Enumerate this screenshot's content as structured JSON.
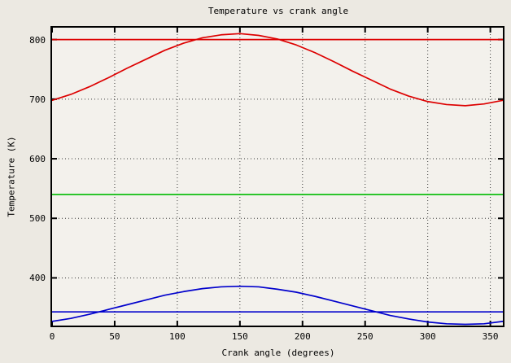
{
  "chart_data": {
    "type": "line",
    "title": "Temperature vs crank angle",
    "xlabel": "Crank angle (degrees)",
    "ylabel": "Temperature (K)",
    "xlim": [
      0,
      360
    ],
    "ylim": [
      320,
      820
    ],
    "xticks": [
      0,
      50,
      100,
      150,
      200,
      250,
      300,
      350
    ],
    "yticks": [
      400,
      500,
      600,
      700,
      800
    ],
    "grid": "dotted",
    "legend": "none",
    "x": [
      0,
      15,
      30,
      45,
      60,
      75,
      90,
      105,
      120,
      135,
      150,
      165,
      180,
      195,
      210,
      225,
      240,
      255,
      270,
      285,
      300,
      315,
      330,
      345,
      360
    ],
    "series": [
      {
        "name": "red-temperature-curve",
        "color": "#dd0000",
        "values": [
          698,
          708,
          721,
          736,
          752,
          767,
          782,
          794,
          803,
          808,
          810,
          807,
          801,
          791,
          778,
          763,
          747,
          732,
          717,
          705,
          696,
          691,
          689,
          692,
          698
        ]
      },
      {
        "name": "red-constant-line",
        "color": "#dd0000",
        "constant": 800
      },
      {
        "name": "green-constant-line",
        "color": "#00bb00",
        "constant": 540
      },
      {
        "name": "blue-constant-line",
        "color": "#0000cc",
        "constant": 343
      },
      {
        "name": "blue-temperature-curve",
        "color": "#0000cc",
        "values": [
          327,
          332,
          339,
          347,
          355,
          363,
          371,
          377,
          382,
          385,
          386,
          385,
          381,
          376,
          369,
          361,
          353,
          345,
          337,
          331,
          326,
          323,
          322,
          323,
          327
        ]
      }
    ]
  },
  "style": {
    "background": "#ece9e2",
    "plot_background": "#f3f1ec",
    "frame_color": "#000000",
    "grid_color": "#3a3a3a"
  }
}
